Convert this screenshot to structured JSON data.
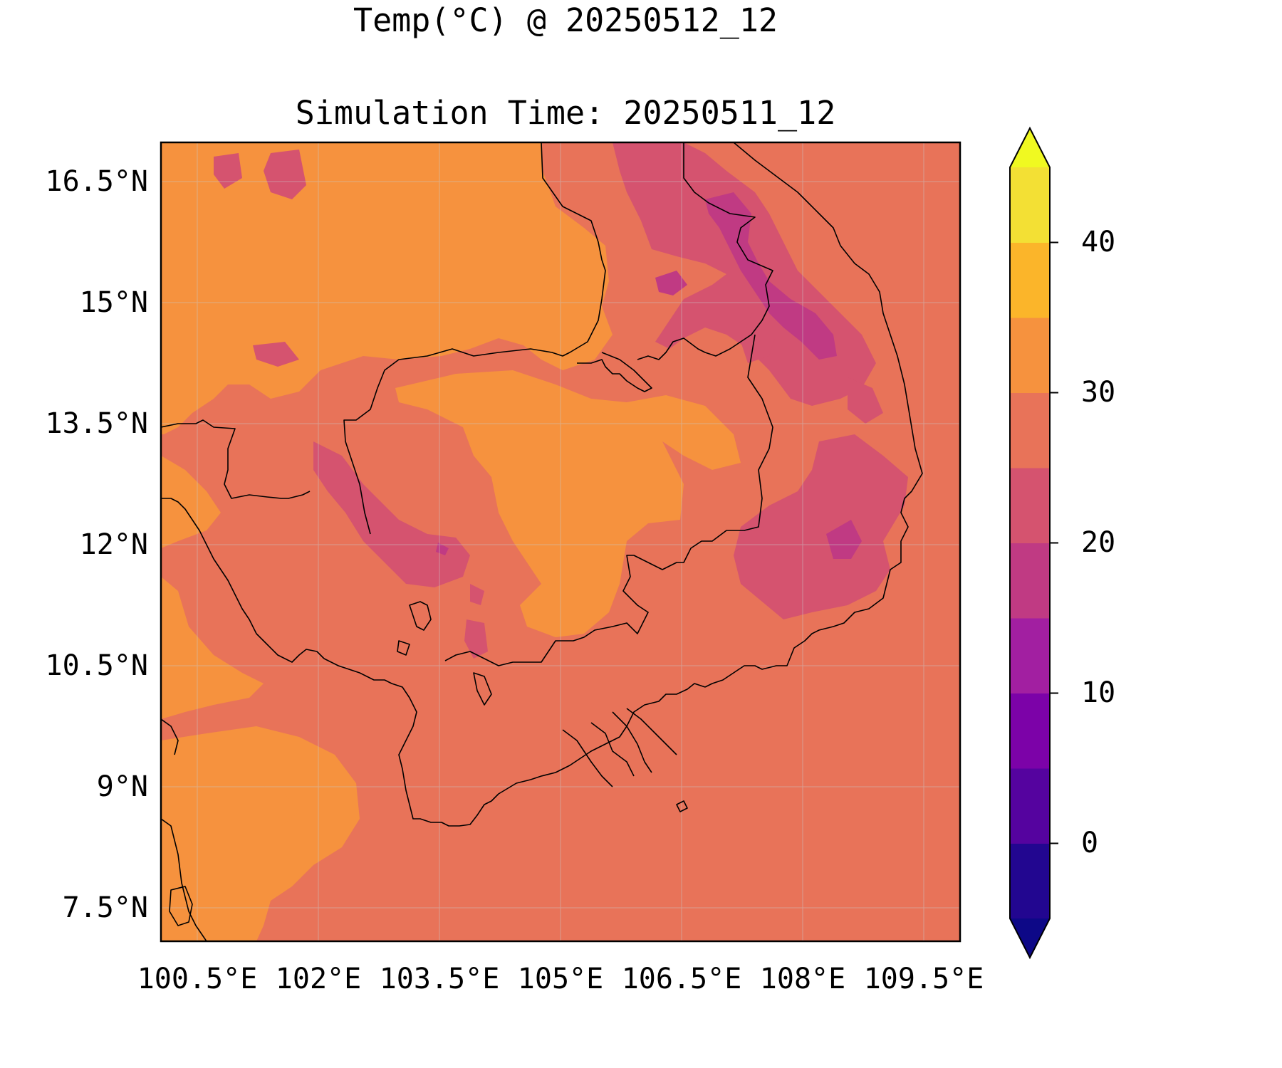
{
  "title": "Temp(°C) @ 20250512_12",
  "subtitle": "Simulation Time: 20250511_12",
  "map": {
    "type": "filled-contour",
    "variable": "temperature",
    "units": "°C",
    "region": "Cambodia / southern Indochina",
    "lon_range": [
      100.0,
      110.0
    ],
    "lat_range": [
      6.8,
      16.8
    ],
    "lat_ticks": [
      "16.5°N",
      "15°N",
      "13.5°N",
      "12°N",
      "10.5°N",
      "9°N",
      "7.5°N"
    ],
    "lon_ticks": [
      "100.5°E",
      "102°E",
      "103.5°E",
      "105°E",
      "106.5°E",
      "108°E",
      "109.5°E"
    ],
    "grid": true,
    "colormap": "plasma",
    "contour_levels": [
      -5,
      0,
      5,
      10,
      15,
      20,
      25,
      30,
      35,
      40,
      45
    ],
    "band_colors": [
      "#220690",
      "#55039f",
      "#7c02a8",
      "#a21fa1",
      "#c03a83",
      "#d5536f",
      "#e87359",
      "#f6923e",
      "#fbb52a",
      "#f3e034"
    ],
    "under_color": "#0d0887",
    "over_color": "#f0f921",
    "dominant_band": "25–30",
    "colorbar_ticks": [
      "0",
      "10",
      "20",
      "30",
      "40"
    ],
    "colorbar_extend": "both"
  }
}
